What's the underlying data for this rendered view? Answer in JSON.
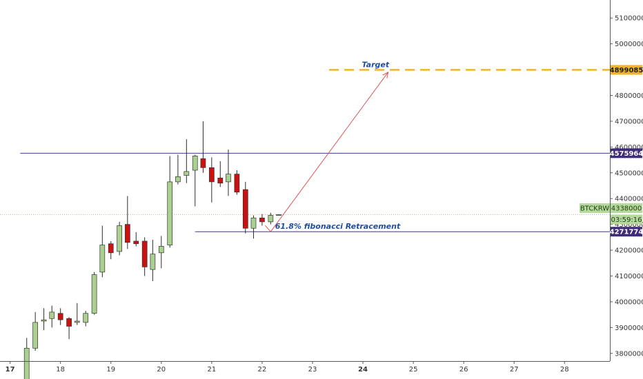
{
  "chart_data": {
    "type": "candlestick",
    "symbol": "BTCKRW",
    "last_price": "4338000",
    "countdown": "03:59:16",
    "y_range": [
      3770000,
      5170000
    ],
    "x_range": [
      16.8,
      28.9
    ],
    "y_ticks": [
      3800000,
      3900000,
      4000000,
      4100000,
      4200000,
      4300000,
      4400000,
      4500000,
      4600000,
      4700000,
      4800000,
      4900000,
      5000000,
      5100000
    ],
    "x_ticks": [
      {
        "value": 17,
        "label": "17",
        "bold": true
      },
      {
        "value": 18,
        "label": "18",
        "bold": false
      },
      {
        "value": 19,
        "label": "19",
        "bold": false
      },
      {
        "value": 20,
        "label": "20",
        "bold": false
      },
      {
        "value": 21,
        "label": "21",
        "bold": false
      },
      {
        "value": 22,
        "label": "22",
        "bold": false
      },
      {
        "value": 23,
        "label": "23",
        "bold": false
      },
      {
        "value": 24,
        "label": "24",
        "bold": true
      },
      {
        "value": 25,
        "label": "25",
        "bold": false
      },
      {
        "value": 26,
        "label": "26",
        "bold": false
      },
      {
        "value": 27,
        "label": "27",
        "bold": false
      },
      {
        "value": 28,
        "label": "28",
        "bold": false
      }
    ],
    "candles": [
      {
        "t": 17.33,
        "o": 3690000,
        "h": 3860000,
        "l": 3650000,
        "c": 3820000
      },
      {
        "t": 17.5,
        "o": 3820000,
        "h": 3960000,
        "l": 3810000,
        "c": 3920000
      },
      {
        "t": 17.67,
        "o": 3925000,
        "h": 3975000,
        "l": 3890000,
        "c": 3930000
      },
      {
        "t": 17.83,
        "o": 3935000,
        "h": 3985000,
        "l": 3900000,
        "c": 3960000
      },
      {
        "t": 18.0,
        "o": 3955000,
        "h": 3975000,
        "l": 3910000,
        "c": 3930000
      },
      {
        "t": 18.17,
        "o": 3935000,
        "h": 3940000,
        "l": 3855000,
        "c": 3905000
      },
      {
        "t": 18.33,
        "o": 3920000,
        "h": 3995000,
        "l": 3910000,
        "c": 3925000
      },
      {
        "t": 18.5,
        "o": 3920000,
        "h": 3965000,
        "l": 3905000,
        "c": 3955000
      },
      {
        "t": 18.67,
        "o": 3955000,
        "h": 4115000,
        "l": 3950000,
        "c": 4105000
      },
      {
        "t": 18.83,
        "o": 4115000,
        "h": 4295000,
        "l": 4095000,
        "c": 4220000
      },
      {
        "t": 19.0,
        "o": 4225000,
        "h": 4235000,
        "l": 4165000,
        "c": 4190000
      },
      {
        "t": 19.17,
        "o": 4195000,
        "h": 4310000,
        "l": 4180000,
        "c": 4295000
      },
      {
        "t": 19.33,
        "o": 4300000,
        "h": 4410000,
        "l": 4205000,
        "c": 4230000
      },
      {
        "t": 19.5,
        "o": 4235000,
        "h": 4270000,
        "l": 4215000,
        "c": 4225000
      },
      {
        "t": 19.67,
        "o": 4235000,
        "h": 4250000,
        "l": 4100000,
        "c": 4135000
      },
      {
        "t": 19.83,
        "o": 4125000,
        "h": 4240000,
        "l": 4080000,
        "c": 4185000
      },
      {
        "t": 20.0,
        "o": 4190000,
        "h": 4255000,
        "l": 4130000,
        "c": 4215000
      },
      {
        "t": 20.17,
        "o": 4220000,
        "h": 4565000,
        "l": 4210000,
        "c": 4465000
      },
      {
        "t": 20.33,
        "o": 4465000,
        "h": 4570000,
        "l": 4455000,
        "c": 4485000
      },
      {
        "t": 20.5,
        "o": 4490000,
        "h": 4630000,
        "l": 4460000,
        "c": 4505000
      },
      {
        "t": 20.67,
        "o": 4510000,
        "h": 4570000,
        "l": 4370000,
        "c": 4565000
      },
      {
        "t": 20.83,
        "o": 4555000,
        "h": 4700000,
        "l": 4500000,
        "c": 4520000
      },
      {
        "t": 21.0,
        "o": 4520000,
        "h": 4560000,
        "l": 4385000,
        "c": 4465000
      },
      {
        "t": 21.17,
        "o": 4480000,
        "h": 4545000,
        "l": 4445000,
        "c": 4460000
      },
      {
        "t": 21.33,
        "o": 4465000,
        "h": 4590000,
        "l": 4410000,
        "c": 4495000
      },
      {
        "t": 21.5,
        "o": 4495000,
        "h": 4510000,
        "l": 4415000,
        "c": 4425000
      },
      {
        "t": 21.67,
        "o": 4435000,
        "h": 4465000,
        "l": 4265000,
        "c": 4285000
      },
      {
        "t": 21.83,
        "o": 4285000,
        "h": 4335000,
        "l": 4245000,
        "c": 4325000
      },
      {
        "t": 22.0,
        "o": 4325000,
        "h": 4340000,
        "l": 4295000,
        "c": 4310000
      },
      {
        "t": 22.17,
        "o": 4310000,
        "h": 4345000,
        "l": 4300000,
        "c": 4335000
      },
      {
        "t": 22.33,
        "o": 4338000,
        "h": 4340000,
        "l": 4336000,
        "c": 4338000
      }
    ],
    "levels": [
      {
        "name": "resistance",
        "value": 4575964,
        "label": "4575964",
        "x_start": 17.2,
        "color": "#3f3a86",
        "badge_color": "#3f2c7a",
        "style": "solid"
      },
      {
        "name": "fib-support",
        "value": 4271774,
        "label": "4271774",
        "x_start": 20.67,
        "color": "#3f3a86",
        "badge_color": "#3f2c7a",
        "style": "solid"
      },
      {
        "name": "target",
        "value": 4899085,
        "label": "4899085",
        "x_start": 23.33,
        "color": "#f0b429",
        "badge_color": "#f0b429",
        "style": "dashed"
      }
    ],
    "price_line": {
      "value": 4338000,
      "color": "#c9b27a"
    },
    "arrow": {
      "from": {
        "t": 22.17,
        "v": 4271774
      },
      "to": {
        "t": 24.5,
        "v": 4890000
      },
      "color": "#e05050"
    },
    "annotations": [
      {
        "name": "target-label",
        "text": "Target",
        "t": 24.25,
        "v": 4910000
      },
      {
        "name": "fib-label",
        "text": "61.8% fibonacci Retracement",
        "t": 23.5,
        "v": 4283000
      }
    ],
    "up_color": "#a9d08e",
    "down_color": "#cc1111",
    "wick_color": "#2b2b2b",
    "last_badge_color": "#b5d99c",
    "grid": false
  }
}
